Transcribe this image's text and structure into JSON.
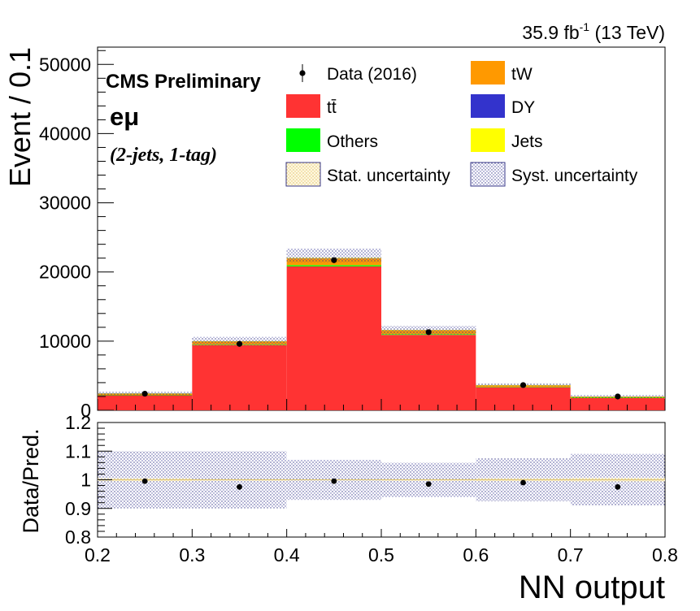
{
  "chart_data": {
    "type": "bar",
    "stacked": true,
    "lumi_label": "35.9 fb",
    "lumi_sup": "-1",
    "lumi_energy": " (13 TeV)",
    "cms_label": "CMS Preliminary",
    "channel_label": "eμ",
    "category_label": "(2-jets, 1-tag)",
    "ylabel": "Event / 0.1",
    "xlabel": "NN output",
    "ratio_ylabel": "Data/Pred.",
    "xlim": [
      0.2,
      0.8
    ],
    "ylim": [
      0,
      52500
    ],
    "ratio_ylim": [
      0.8,
      1.2
    ],
    "bin_edges": [
      0.2,
      0.3,
      0.4,
      0.5,
      0.6,
      0.7,
      0.8
    ],
    "x_ticks": [
      "0.2",
      "0.3",
      "0.4",
      "0.5",
      "0.6",
      "0.7",
      "0.8"
    ],
    "y_ticks": [
      0,
      10000,
      20000,
      30000,
      40000,
      50000
    ],
    "ratio_y_ticks": [
      "0.8",
      "0.9",
      "1",
      "1.1",
      "1.2"
    ],
    "series": [
      {
        "name": "tt̄",
        "color": "#ff3333",
        "values": [
          2200,
          9400,
          20800,
          10900,
          3350,
          1800
        ]
      },
      {
        "name": "Others",
        "color": "#00ff00",
        "values": [
          30,
          80,
          180,
          100,
          30,
          20
        ]
      },
      {
        "name": "tW",
        "color": "#ff9900",
        "values": [
          200,
          500,
          1000,
          600,
          260,
          160
        ]
      },
      {
        "name": "DY",
        "color": "#3333cc",
        "values": [
          5,
          10,
          20,
          10,
          5,
          5
        ]
      },
      {
        "name": "Jets",
        "color": "#ffff00",
        "values": [
          5,
          10,
          20,
          10,
          5,
          5
        ]
      }
    ],
    "data": {
      "name": "Data (2016)",
      "values": [
        2400,
        9600,
        21700,
        11300,
        3650,
        2000
      ]
    },
    "syst_band": {
      "up": [
        2700,
        10600,
        23400,
        12200,
        3900,
        2200
      ],
      "down": [
        2200,
        9400,
        21400,
        11000,
        3500,
        1800
      ]
    },
    "ratio": {
      "values": [
        0.995,
        0.975,
        0.995,
        0.985,
        0.99,
        0.975
      ],
      "syst_half_width": [
        0.1,
        0.1,
        0.07,
        0.06,
        0.075,
        0.09
      ],
      "stat_half_width": [
        0.005,
        0.003,
        0.002,
        0.003,
        0.005,
        0.006
      ]
    },
    "legend": [
      {
        "label": "Data (2016)",
        "kind": "marker"
      },
      {
        "label": "tW",
        "kind": "fill",
        "color": "#ff9900"
      },
      {
        "label": "tt̄",
        "kind": "fill",
        "color": "#ff3333"
      },
      {
        "label": "DY",
        "kind": "fill",
        "color": "#3333cc"
      },
      {
        "label": "Others",
        "kind": "fill",
        "color": "#00ff00"
      },
      {
        "label": "Jets",
        "kind": "fill",
        "color": "#ffff00"
      },
      {
        "label": "Stat. uncertainty",
        "kind": "hatch-stat"
      },
      {
        "label": "Syst. uncertainty",
        "kind": "hatch-syst"
      }
    ]
  }
}
